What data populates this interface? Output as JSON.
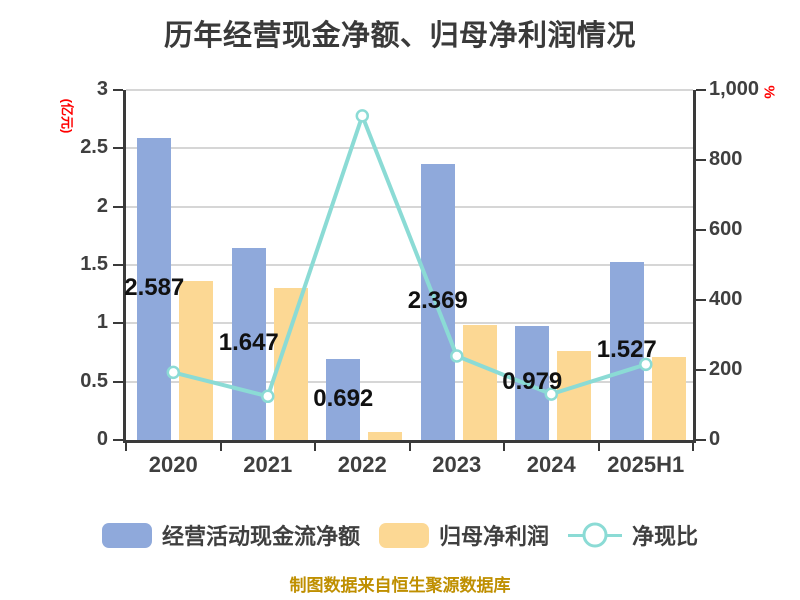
{
  "title": "历年经营现金净额、归母净利润情况",
  "footer_note": "制图数据来自恒生聚源数据库",
  "left_axis_unit": "(亿元)",
  "right_axis_unit": "%",
  "colors": {
    "bar_blue": "#8fa9db",
    "bar_yellow": "#fcd894",
    "line_teal": "#8bdbd5",
    "marker_fill": "#ffffff",
    "axis": "#3a3a3a",
    "grid": "#d6d6d6",
    "tick_text": "#3f3f3f",
    "data_label_text": "#111111",
    "unit_red": "#ff0000",
    "footer_olive": "#bf8f00"
  },
  "legend": [
    {
      "label": "经营活动现金流净额",
      "swatch": "blue-bar"
    },
    {
      "label": "归母净利润",
      "swatch": "yellow-bar"
    },
    {
      "label": "净现比",
      "swatch": "teal-line-marker"
    }
  ],
  "chart_data": {
    "type": "bar",
    "subtype": "grouped bars with secondary-axis line (combo)",
    "title": "历年经营现金净额、归母净利润情况",
    "categories": [
      "2020",
      "2021",
      "2022",
      "2023",
      "2024",
      "2025H1"
    ],
    "series": [
      {
        "name": "经营活动现金流净额",
        "type": "bar",
        "axis": "left",
        "values": [
          2.587,
          1.647,
          0.692,
          2.369,
          0.979,
          1.527
        ],
        "data_labels": [
          "2.587",
          "1.647",
          "0.692",
          "2.369",
          "0.979",
          "1.527"
        ]
      },
      {
        "name": "归母净利润",
        "type": "bar",
        "axis": "left",
        "values": [
          1.36,
          1.3,
          0.07,
          0.99,
          0.76,
          0.71
        ],
        "data_labels": []
      },
      {
        "name": "净现比",
        "type": "line",
        "axis": "right",
        "values": [
          193,
          125,
          926,
          240,
          131,
          216
        ],
        "data_labels": []
      }
    ],
    "left_axis": {
      "unit": "亿元",
      "min": 0,
      "max": 3,
      "ticks": [
        0,
        0.5,
        1,
        1.5,
        2,
        2.5,
        3
      ],
      "tick_labels": [
        "0",
        "0.5",
        "1",
        "1.5",
        "2",
        "2.5",
        "3"
      ]
    },
    "right_axis": {
      "unit": "%",
      "min": 0,
      "max": 1000,
      "ticks": [
        0,
        200,
        400,
        600,
        800,
        1000
      ],
      "tick_labels": [
        "0",
        "200",
        "400",
        "600",
        "800",
        "1,000"
      ]
    },
    "grid": "horizontal gridlines at left-axis ticks",
    "legend_position": "bottom"
  }
}
